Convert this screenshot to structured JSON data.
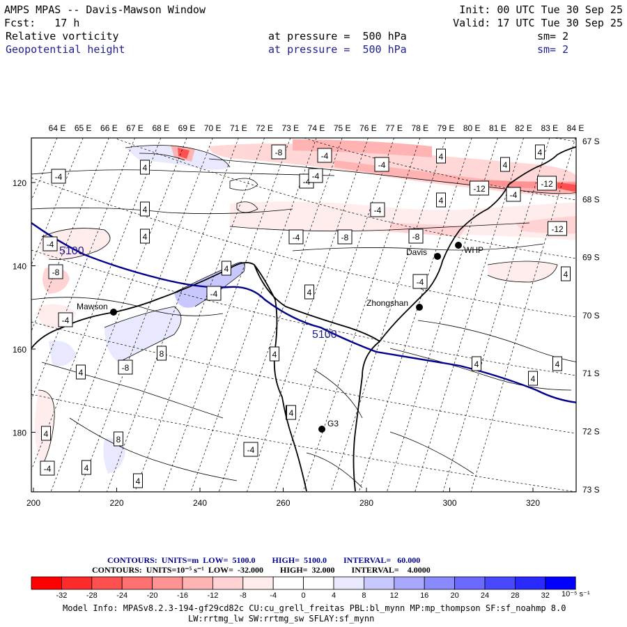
{
  "header": {
    "title": "AMPS MPAS -- Davis-Mawson Window",
    "fcst": "Fcst:   17 h",
    "init": "Init: 00 UTC Tue 30 Sep 25",
    "valid": "Valid: 17 UTC Tue 30 Sep 25",
    "field1": {
      "name": "Relative vorticity",
      "level": "at pressure =  500 hPa",
      "sm": "sm= 2"
    },
    "field2": {
      "name": "Geopotential height",
      "level": "at pressure =  500 hPa",
      "sm": "sm= 2"
    }
  },
  "colors": {
    "accent_blue": "#1d1d8f",
    "contour_blue": "#00008b"
  },
  "map": {
    "top_lon_labels": [
      "64 E",
      "65 E",
      "66 E",
      "67 E",
      "68 E",
      "69 E",
      "70 E",
      "71 E",
      "72 E",
      "73 E",
      "74 E",
      "75 E",
      "76 E",
      "77 E",
      "78 E",
      "79 E",
      "80 E",
      "81 E",
      "82 E",
      "83 E",
      "84 E"
    ],
    "right_lat_labels": [
      "67 S",
      "68 S",
      "69 S",
      "70 S",
      "71 S",
      "72 S",
      "73 S"
    ],
    "left_y_labels": [
      "120",
      "140",
      "160",
      "180"
    ],
    "bottom_x_labels": [
      "200",
      "220",
      "240",
      "260",
      "280",
      "300",
      "320"
    ],
    "stations": [
      {
        "name": "Mawson",
        "icon": "station-dot-icon"
      },
      {
        "name": "Davis",
        "icon": "station-dot-icon"
      },
      {
        "name": "WHP",
        "icon": "station-dot-icon"
      },
      {
        "name": "Zhongshan",
        "icon": "station-dot-icon"
      },
      {
        "name": "G3",
        "icon": "station-dot-icon"
      }
    ],
    "height_contour_label": "5100",
    "vort_labels": [
      "-8",
      "-8",
      "-4",
      "-4",
      "4",
      "-12",
      "-12",
      "4",
      "-8",
      "-4",
      "-4",
      "-4",
      "-8",
      "-4",
      "-4",
      "-12",
      "-4",
      "-4",
      "4",
      "-4",
      "-4",
      "4",
      "4",
      "-8",
      "4",
      "4",
      "-4",
      "8",
      "4",
      "-4",
      "8",
      "4",
      "4",
      "4",
      "4",
      "-4",
      "4",
      "8",
      "4",
      "-4",
      "4",
      "4",
      "4",
      "4",
      "4",
      "4"
    ]
  },
  "legend": {
    "line1": "CONTOURS:  UNITS=m  LOW=  5100.0        HIGH=  5100.0        INTERVAL=   60.000",
    "line2": "CONTOURS:  UNITS=10⁻⁵ s⁻¹  LOW=  -32.000        HIGH=  32.000        INTERVAL=    4.0000",
    "colorbar_colors": [
      "#ff0000",
      "#ff2a2a",
      "#ff5050",
      "#ff7070",
      "#ff9292",
      "#ffb3b3",
      "#ffd3d3",
      "#ffeded",
      "#ffffff",
      "#ffffff",
      "#e8e8ff",
      "#c8c8ff",
      "#a8a8ff",
      "#8a8aff",
      "#6a6aff",
      "#4848ff",
      "#2a2aff",
      "#0000ff"
    ],
    "ticks": [
      "-32",
      "-28",
      "-24",
      "-20",
      "-16",
      "-12",
      "-8",
      "-4",
      "0",
      "4",
      "8",
      "12",
      "16",
      "20",
      "24",
      "28",
      "32"
    ],
    "units": "10⁻⁵ s⁻¹"
  },
  "model_info": {
    "line1": "Model Info: MPASv8.2.3-194-gf29cd82c CU:cu_grell_freitas PBL:bl_mynn MP:mp_thompson SF:sf_noahmp 8.0",
    "line2": "LW:rrtmg_lw SW:rrtmg_sw SFLAY:sf_mynn"
  }
}
